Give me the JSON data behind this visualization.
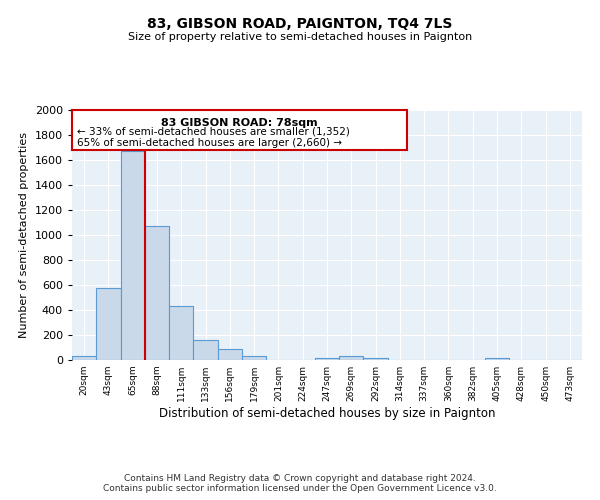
{
  "title": "83, GIBSON ROAD, PAIGNTON, TQ4 7LS",
  "subtitle": "Size of property relative to semi-detached houses in Paignton",
  "xlabel": "Distribution of semi-detached houses by size in Paignton",
  "ylabel": "Number of semi-detached properties",
  "bin_labels": [
    "20sqm",
    "43sqm",
    "65sqm",
    "88sqm",
    "111sqm",
    "133sqm",
    "156sqm",
    "179sqm",
    "201sqm",
    "224sqm",
    "247sqm",
    "269sqm",
    "292sqm",
    "314sqm",
    "337sqm",
    "360sqm",
    "382sqm",
    "405sqm",
    "428sqm",
    "450sqm",
    "473sqm"
  ],
  "bin_values": [
    30,
    580,
    1670,
    1070,
    430,
    160,
    90,
    35,
    0,
    0,
    20,
    30,
    20,
    0,
    0,
    0,
    0,
    20,
    0,
    0,
    0
  ],
  "bar_color": "#c9d9ea",
  "bar_edge_color": "#5b9bd5",
  "property_line_label": "83 GIBSON ROAD: 78sqm",
  "annotation_smaller": "← 33% of semi-detached houses are smaller (1,352)",
  "annotation_larger": "65% of semi-detached houses are larger (2,660) →",
  "box_color": "#ffffff",
  "box_edge_color": "#cc0000",
  "line_color": "#cc0000",
  "ylim": [
    0,
    2000
  ],
  "yticks": [
    0,
    200,
    400,
    600,
    800,
    1000,
    1200,
    1400,
    1600,
    1800,
    2000
  ],
  "background_color": "#e8f0f8",
  "fig_background": "#ffffff",
  "footer_line1": "Contains HM Land Registry data © Crown copyright and database right 2024.",
  "footer_line2": "Contains public sector information licensed under the Open Government Licence v3.0."
}
